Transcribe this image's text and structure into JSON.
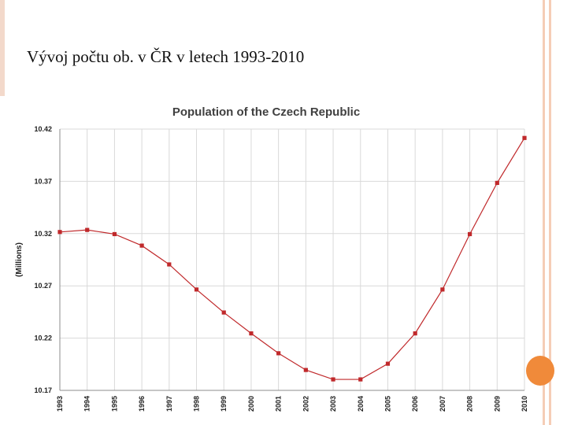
{
  "slide": {
    "title": "Vývoj počtu ob. v ČR v letech 1993-2010"
  },
  "colors": {
    "accent": "#f08a3a",
    "frame": "#f5cdb6",
    "series": "#c0292b",
    "grid": "#d9d9d9"
  },
  "chart_data": {
    "type": "line",
    "title": "Population of the Czech Republic",
    "xlabel": "",
    "ylabel": "(Millions)",
    "grid": true,
    "legend": "none",
    "ylim": [
      10.17,
      10.42
    ],
    "yticks": [
      10.42,
      10.37,
      10.32,
      10.27,
      10.22,
      10.17
    ],
    "ytick_labels": [
      "10.42",
      "10.37",
      "10.32",
      "10.27",
      "10.22",
      "10.17"
    ],
    "categories": [
      "1993",
      "1994",
      "1995",
      "1996",
      "1997",
      "1998",
      "1999",
      "2000",
      "2001",
      "2002",
      "2003",
      "2004",
      "2005",
      "2006",
      "2007",
      "2008",
      "2009",
      "2010"
    ],
    "series": [
      {
        "name": "Population",
        "values": [
          10.3215,
          10.3235,
          10.3195,
          10.3085,
          10.2905,
          10.2665,
          10.2445,
          10.2245,
          10.2055,
          10.1895,
          10.1805,
          10.1805,
          10.1955,
          10.2245,
          10.2665,
          10.3195,
          10.3685,
          10.4115
        ]
      }
    ]
  }
}
